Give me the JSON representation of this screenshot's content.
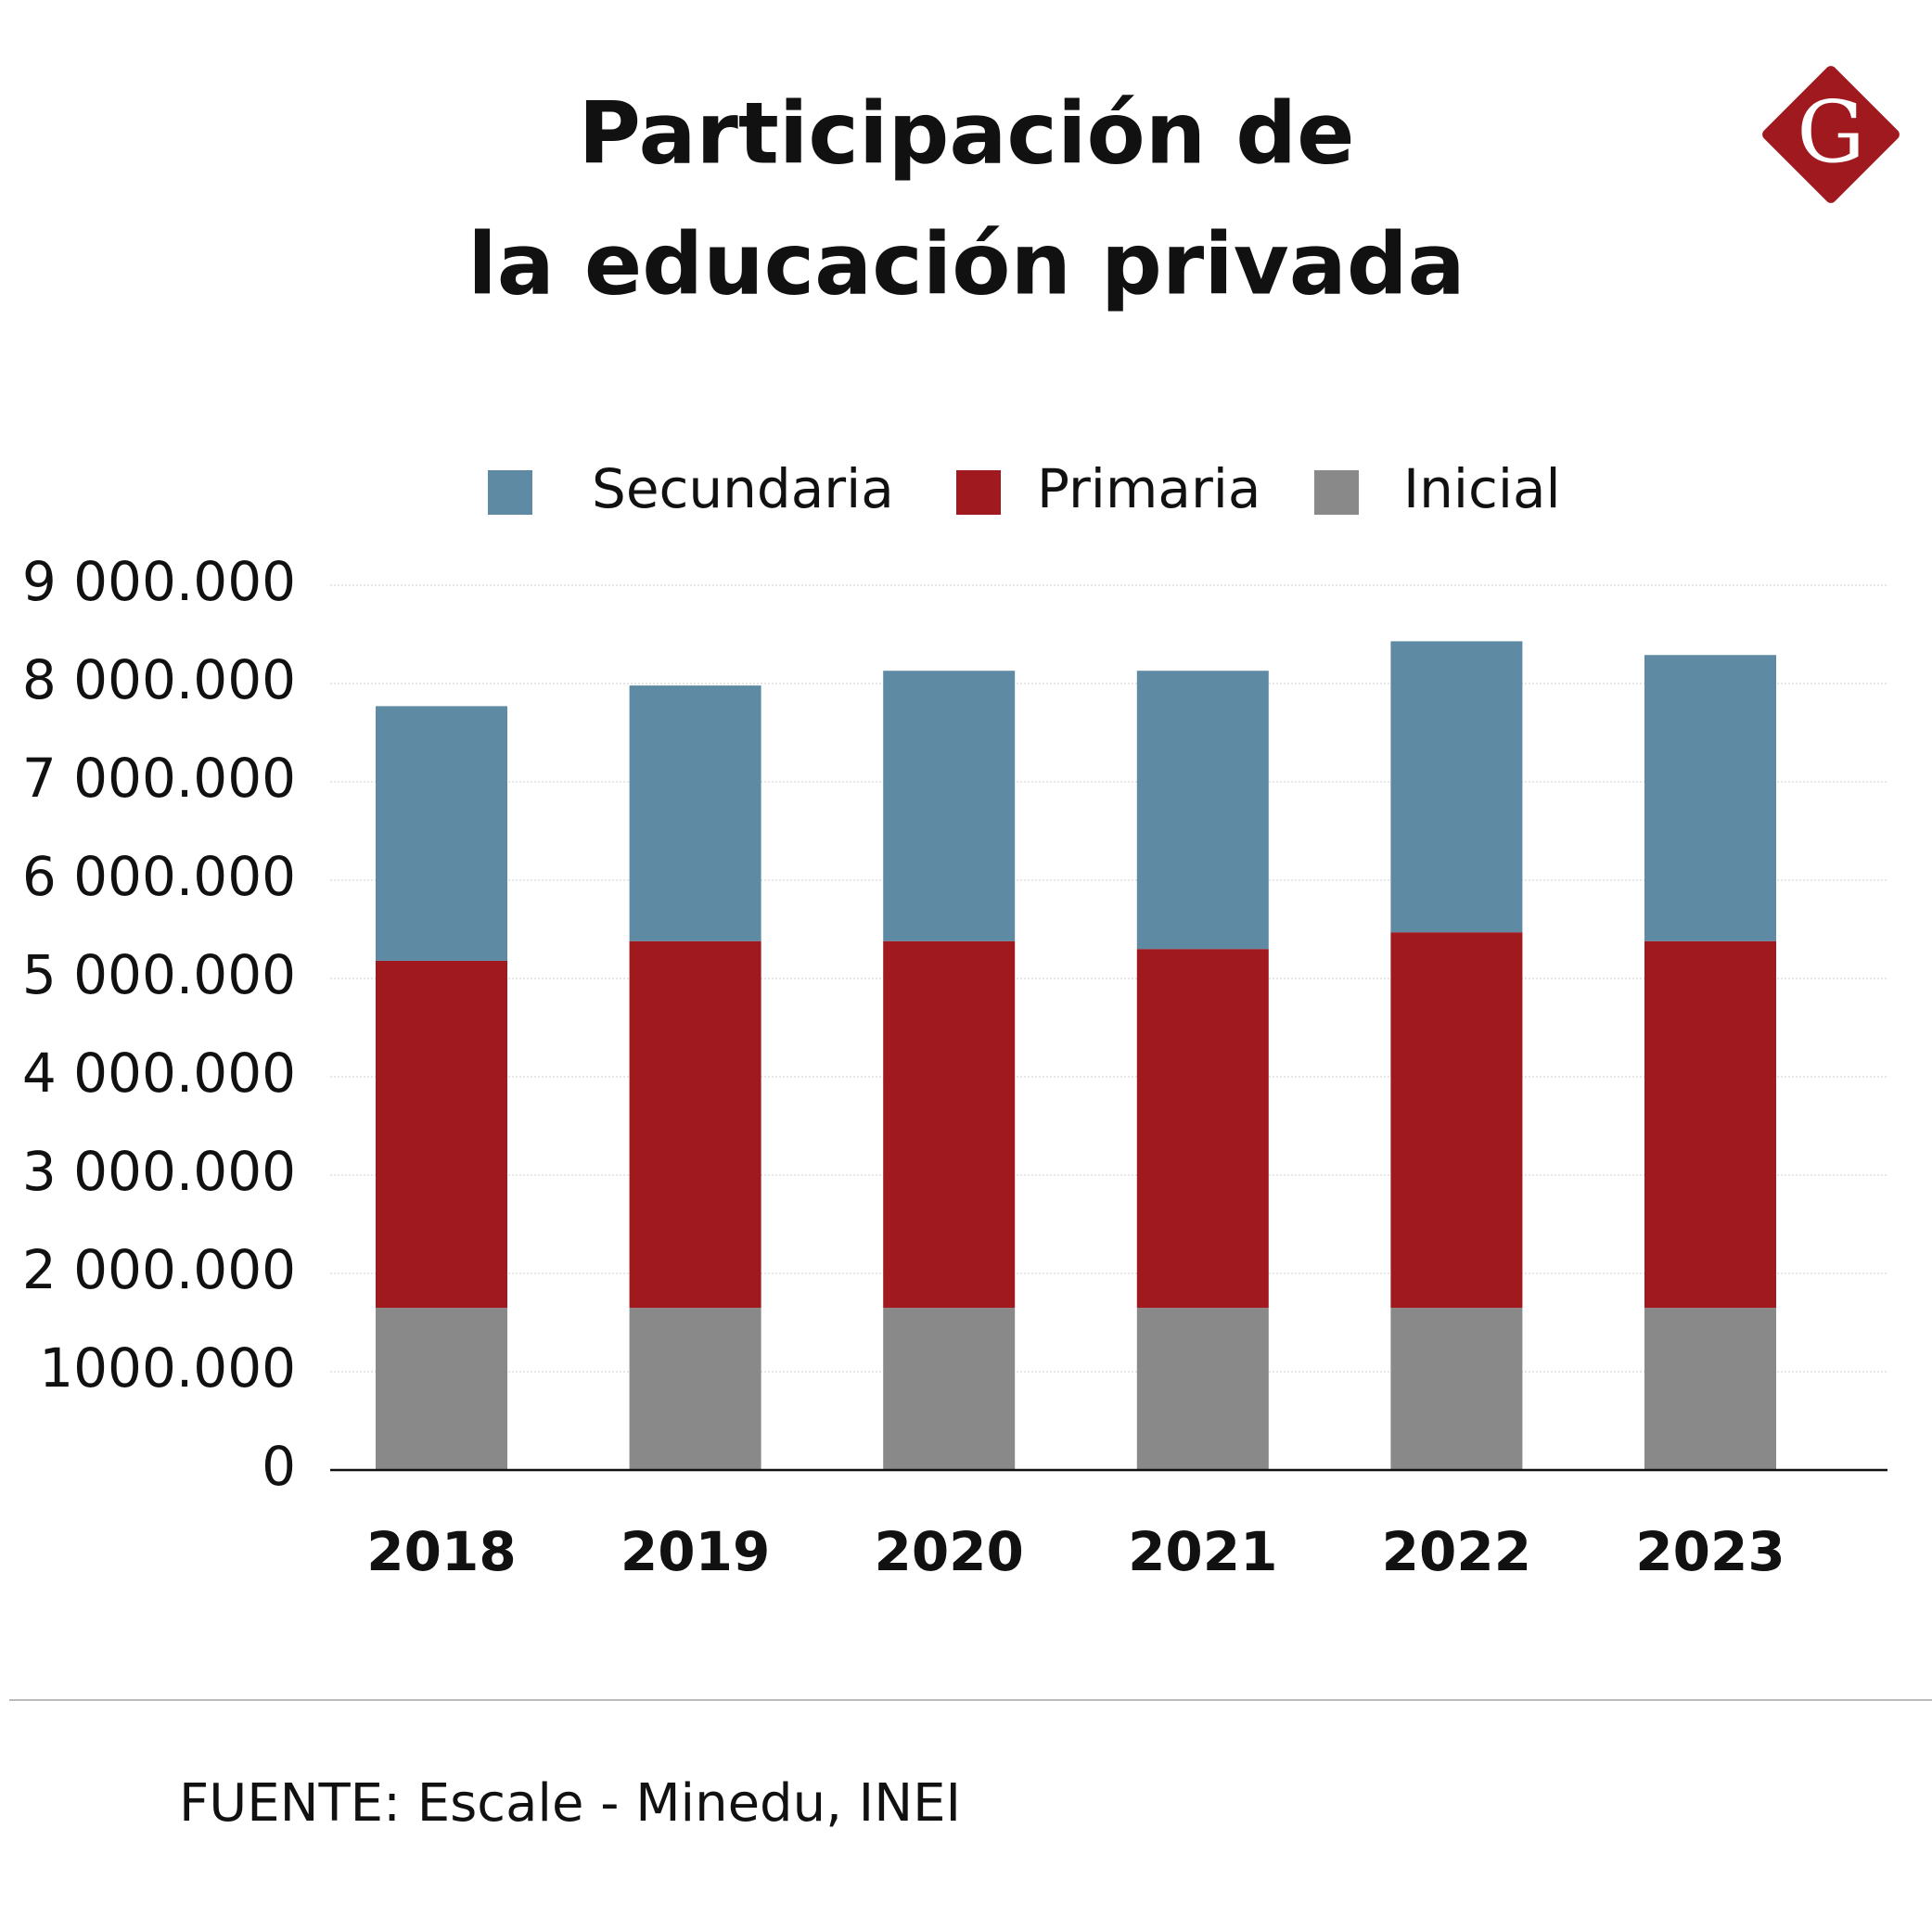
{
  "chart_data": {
    "type": "stacked-bar",
    "title_lines": [
      "Participación de",
      "la educación privada"
    ],
    "logo": "G",
    "categories": [
      "2018",
      "2019",
      "2020",
      "2021",
      "2022",
      "2023"
    ],
    "series": [
      {
        "name": "Inicial",
        "color": "#898989",
        "values": [
          1650000,
          1650000,
          1650000,
          1650000,
          1650000,
          1650000
        ]
      },
      {
        "name": "Primaria",
        "color": "#a0191f",
        "values": [
          3530000,
          3730000,
          3730000,
          3650000,
          3820000,
          3730000
        ]
      },
      {
        "name": "Secundaria",
        "color": "#5e8aa3",
        "values": [
          2590000,
          2600000,
          2750000,
          2830000,
          2960000,
          2910000
        ]
      }
    ],
    "legend_order": [
      2,
      1,
      0
    ],
    "ylim": [
      0,
      9000000
    ],
    "yticks": [
      0,
      {
        "value": 1000000,
        "label": "1000.000"
      },
      {
        "value": 2000000,
        "label": "2 000.000"
      },
      {
        "value": 3000000,
        "label": "3 000.000"
      },
      {
        "value": 4000000,
        "label": "4 000.000"
      },
      {
        "value": 5000000,
        "label": "5 000.000"
      },
      {
        "value": 6000000,
        "label": "6 000.000"
      },
      {
        "value": 7000000,
        "label": "7 000.000"
      },
      {
        "value": 8000000,
        "label": "8 000.000"
      },
      {
        "value": 9000000,
        "label": "9 000.000"
      }
    ],
    "grid": true,
    "source": "FUENTE: Escale - Minedu, INEI"
  }
}
